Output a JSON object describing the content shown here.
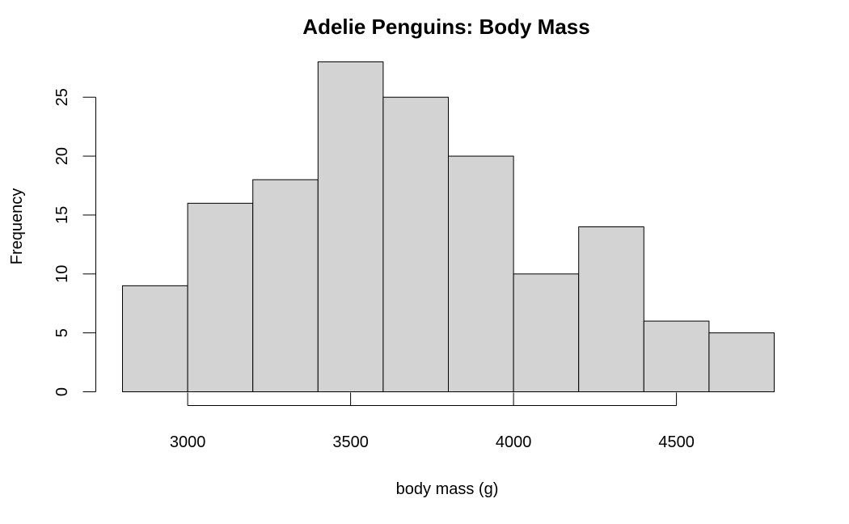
{
  "chart_data": {
    "type": "bar",
    "title": "Adelie Penguins: Body Mass",
    "xlabel": "body mass (g)",
    "ylabel": "Frequency",
    "bins": [
      [
        2800,
        3000
      ],
      [
        3000,
        3200
      ],
      [
        3200,
        3400
      ],
      [
        3400,
        3600
      ],
      [
        3600,
        3800
      ],
      [
        3800,
        4000
      ],
      [
        4000,
        4200
      ],
      [
        4200,
        4400
      ],
      [
        4400,
        4600
      ],
      [
        4600,
        4800
      ]
    ],
    "values": [
      9,
      16,
      18,
      28,
      25,
      20,
      10,
      14,
      6,
      5
    ],
    "xticks": [
      3000,
      3500,
      4000,
      4500
    ],
    "yticks": [
      0,
      5,
      10,
      15,
      20,
      25
    ],
    "xlim": [
      2800,
      4800
    ],
    "ylim": [
      0,
      28
    ],
    "colors": {
      "bar_fill": "#d3d3d3",
      "bar_stroke": "#000000"
    },
    "grid": false,
    "legend": "none"
  }
}
